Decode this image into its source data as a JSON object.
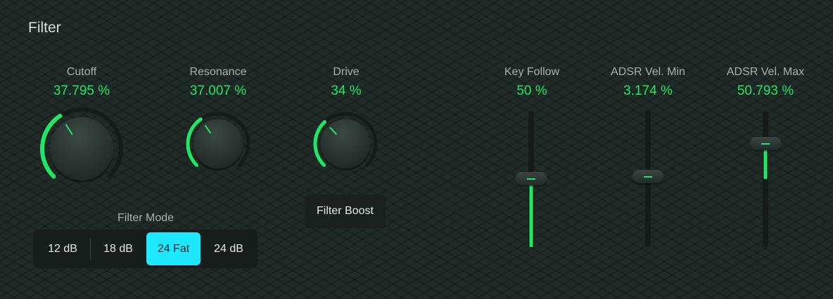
{
  "section_title": "Filter",
  "colors": {
    "accent_green": "#1ee866",
    "selected_cyan": "#1ee8ff",
    "background": "#202b27"
  },
  "knobs": [
    {
      "label": "Cutoff",
      "value_text": "37.795 %",
      "value": 0.37795
    },
    {
      "label": "Resonance",
      "value_text": "37.007 %",
      "value": 0.37007
    },
    {
      "label": "Drive",
      "value_text": "34 %",
      "value": 0.34
    }
  ],
  "sliders": [
    {
      "label": "Key Follow",
      "value_text": "50 %",
      "value": 0.5
    },
    {
      "label": "ADSR Vel. Min",
      "value_text": "3.174 %",
      "value": 0.03174
    },
    {
      "label": "ADSR Vel. Max",
      "value_text": "50.793 %",
      "value": 0.50793
    }
  ],
  "filter_boost": {
    "label": "Filter Boost"
  },
  "filter_mode": {
    "label": "Filter Mode",
    "options": [
      "12 dB",
      "18 dB",
      "24 Fat",
      "24 dB"
    ],
    "selected": "24 Fat"
  }
}
